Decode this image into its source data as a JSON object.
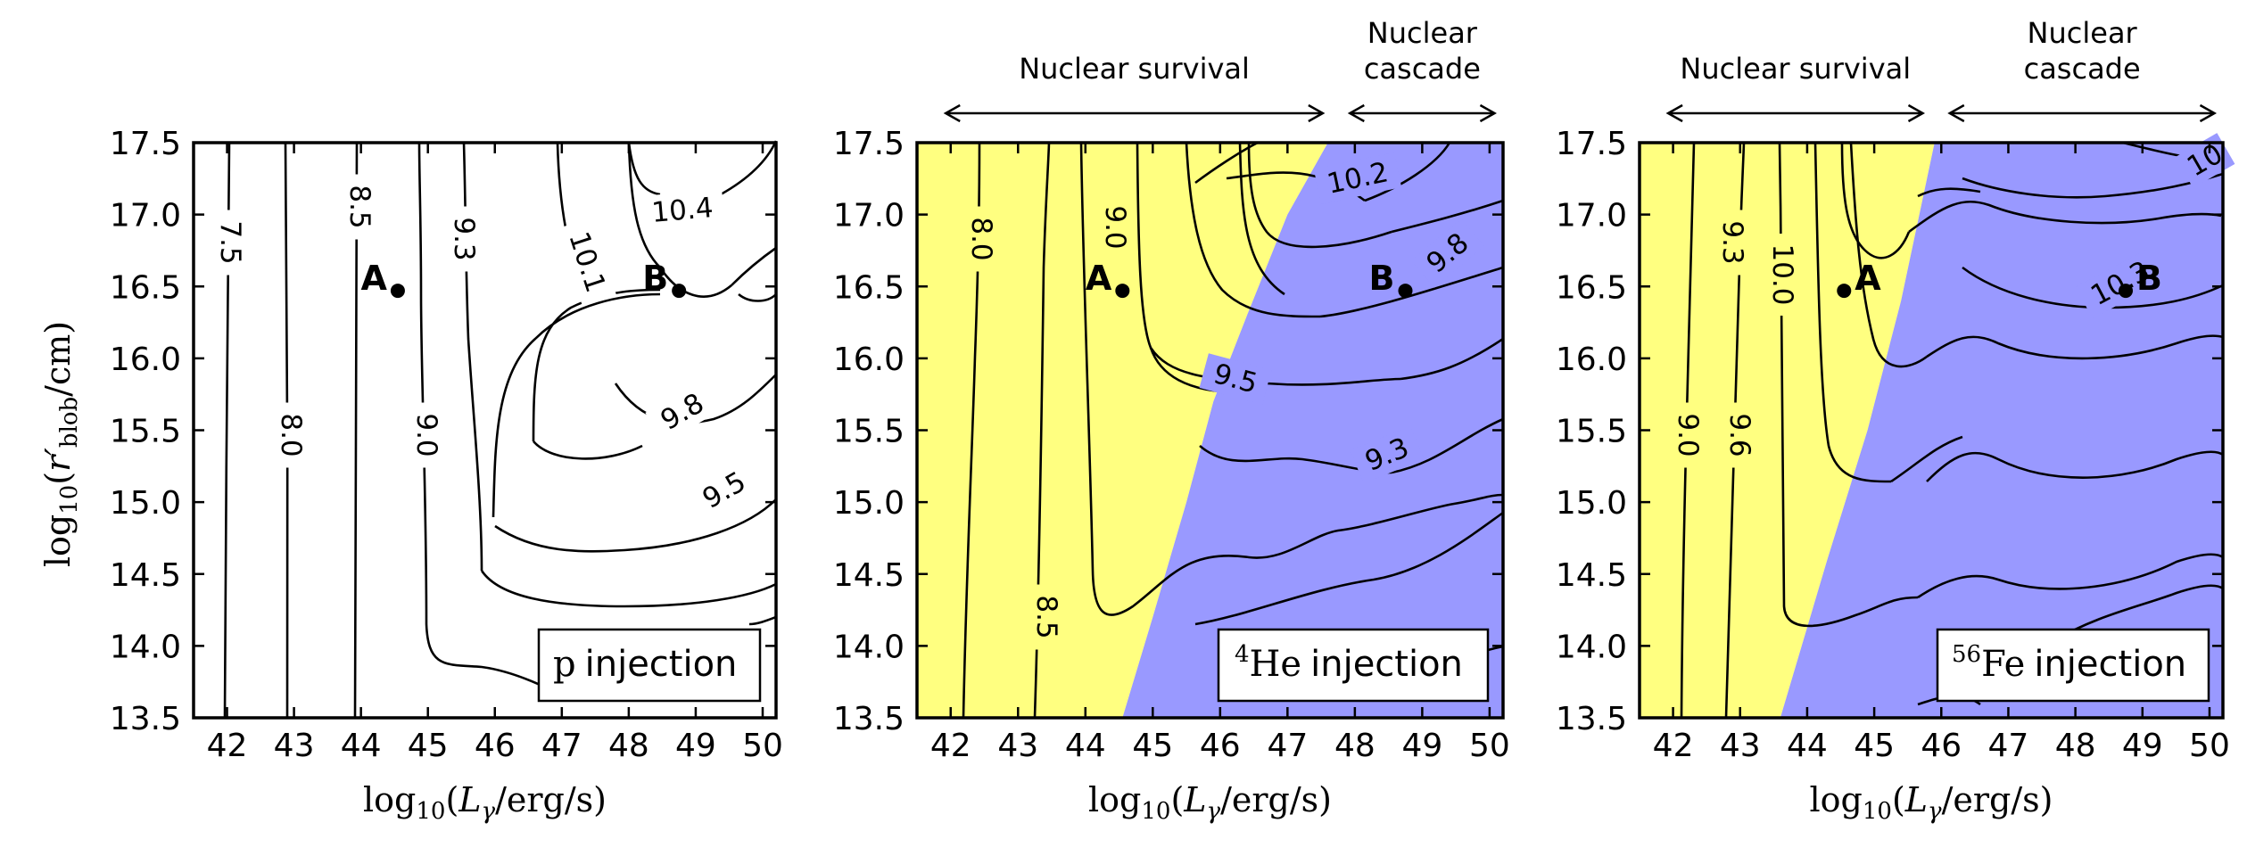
{
  "chart_data": [
    {
      "type": "contour",
      "xlabel": "log10(Lγ/erg/s)",
      "ylabel": "log10(r′blob/cm)",
      "xlim": [
        41.5,
        50.2
      ],
      "ylim": [
        13.5,
        17.5
      ],
      "xticks": [
        "42",
        "43",
        "44",
        "45",
        "46",
        "47",
        "48",
        "49",
        "50"
      ],
      "yticks": [
        "13.5",
        "14.0",
        "14.5",
        "15.0",
        "15.5",
        "16.0",
        "16.5",
        "17.0",
        "17.5"
      ],
      "injection_label": {
        "species": "p",
        "suffix": "injection"
      },
      "contour_labels": [
        "7.5",
        "8.0",
        "8.5",
        "9.0",
        "9.3",
        "9.5",
        "9.8",
        "10.1",
        "10.4"
      ],
      "points": [
        {
          "label": "A",
          "x": 44.55,
          "y": 16.47
        },
        {
          "label": "B",
          "x": 48.75,
          "y": 16.47
        }
      ],
      "regions": [],
      "annotations": []
    },
    {
      "type": "contour",
      "xlabel": "log10(Lγ/erg/s)",
      "ylabel": "",
      "xlim": [
        41.5,
        50.2
      ],
      "ylim": [
        13.5,
        17.5
      ],
      "xticks": [
        "42",
        "43",
        "44",
        "45",
        "46",
        "47",
        "48",
        "49",
        "50"
      ],
      "yticks": [
        "13.5",
        "14.0",
        "14.5",
        "15.0",
        "15.5",
        "16.0",
        "16.5",
        "17.0",
        "17.5"
      ],
      "injection_label": {
        "mass_number": "4",
        "species": "He",
        "suffix": "injection"
      },
      "contour_labels": [
        "8.0",
        "8.5",
        "9.0",
        "9.3",
        "9.5",
        "9.8",
        "10.2"
      ],
      "points": [
        {
          "label": "A",
          "x": 44.55,
          "y": 16.47
        },
        {
          "label": "B",
          "x": 48.75,
          "y": 16.47
        }
      ],
      "regions": [
        {
          "name": "Nuclear survival",
          "color": "#ffff80"
        },
        {
          "name": "Nuclear cascade",
          "color": "#9999ff"
        }
      ],
      "region_boundary": [
        [
          44.55,
          13.5
        ],
        [
          45.0,
          14.2
        ],
        [
          45.5,
          15.0
        ],
        [
          45.9,
          15.7
        ],
        [
          46.4,
          16.3
        ],
        [
          47.0,
          17.0
        ],
        [
          47.6,
          17.5
        ]
      ],
      "annotations": [
        {
          "text": "Nuclear survival",
          "x_from": 41.9,
          "x_to": 47.55
        },
        {
          "text": "Nuclear\ncascade",
          "x_from": 47.9,
          "x_to": 50.1
        }
      ]
    },
    {
      "type": "contour",
      "xlabel": "log10(Lγ/erg/s)",
      "ylabel": "",
      "xlim": [
        41.5,
        50.2
      ],
      "ylim": [
        13.5,
        17.5
      ],
      "xticks": [
        "42",
        "43",
        "44",
        "45",
        "46",
        "47",
        "48",
        "49",
        "50"
      ],
      "yticks": [
        "13.5",
        "14.0",
        "14.5",
        "15.0",
        "15.5",
        "16.0",
        "16.5",
        "17.0",
        "17.5"
      ],
      "injection_label": {
        "mass_number": "56",
        "species": "Fe",
        "suffix": "injection"
      },
      "contour_labels": [
        "9.0",
        "9.3",
        "9.6",
        "10.0",
        "10.3",
        "10"
      ],
      "points": [
        {
          "label": "A",
          "x": 44.55,
          "y": 16.47
        },
        {
          "label": "B",
          "x": 48.75,
          "y": 16.47
        }
      ],
      "regions": [
        {
          "name": "Nuclear survival",
          "color": "#ffff80"
        },
        {
          "name": "Nuclear cascade",
          "color": "#9999ff"
        }
      ],
      "region_boundary": [
        [
          43.6,
          13.5
        ],
        [
          44.3,
          14.6
        ],
        [
          44.9,
          15.5
        ],
        [
          45.4,
          16.4
        ],
        [
          45.9,
          17.5
        ]
      ],
      "annotations": [
        {
          "text": "Nuclear survival",
          "x_from": 41.9,
          "x_to": 45.75
        },
        {
          "text": "Nuclear\ncascade",
          "x_from": 46.1,
          "x_to": 50.1
        }
      ]
    }
  ]
}
